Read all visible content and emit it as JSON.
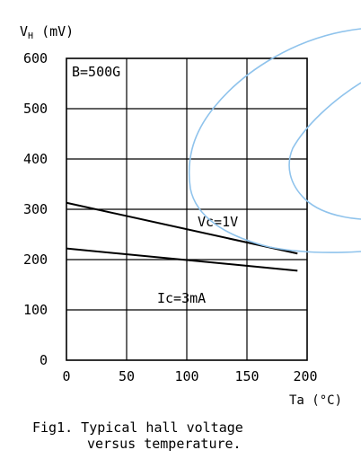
{
  "chart_data": {
    "type": "line",
    "ylabel_main": "V",
    "ylabel_sub": "H",
    "ylabel_unit": " (mV)",
    "xlabel": "Ta (°C)",
    "xlim": [
      0,
      200
    ],
    "ylim": [
      0,
      600
    ],
    "x_ticks": [
      "0",
      "50",
      "100",
      "150",
      "200"
    ],
    "y_ticks": [
      "0",
      "100",
      "200",
      "300",
      "400",
      "500",
      "600"
    ],
    "grid": true,
    "condition_label": "B=500G",
    "series": [
      {
        "name": "Vc=1V",
        "x": [
          0,
          192
        ],
        "values": [
          313,
          212
        ]
      },
      {
        "name": "Ic=3mA",
        "x": [
          0,
          192
        ],
        "values": [
          222,
          178
        ]
      }
    ],
    "caption_line1": "Fig1. Typical hall voltage",
    "caption_line2": "versus temperature."
  },
  "colors": {
    "axis": "#000000",
    "line": "#000000",
    "watermark": "#8fc3ec"
  },
  "watermark_icon": "blue-curved-outline"
}
